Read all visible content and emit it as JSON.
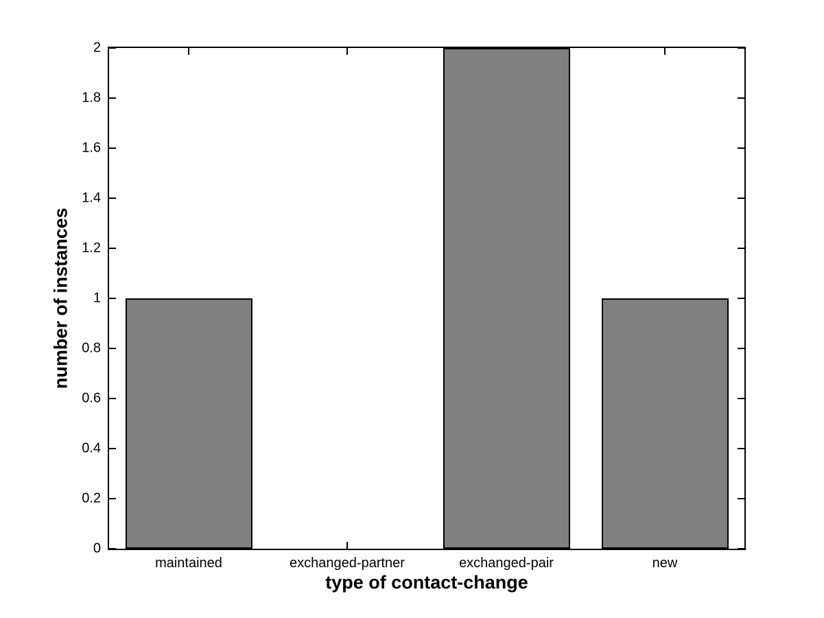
{
  "chart_data": {
    "type": "bar",
    "categories": [
      "maintained",
      "exchanged-partner",
      "exchanged-pair",
      "new"
    ],
    "values": [
      1,
      0,
      2,
      1
    ],
    "title": "",
    "xlabel": "type of contact-change",
    "ylabel": "number of instances",
    "ylim": [
      0,
      2
    ],
    "yticks": [
      0,
      0.2,
      0.4,
      0.6,
      0.8,
      1,
      1.2,
      1.4,
      1.6,
      1.8,
      2
    ],
    "ytick_labels": [
      "0",
      "0.2",
      "0.4",
      "0.6",
      "0.8",
      "1",
      "1.2",
      "1.4",
      "1.6",
      "1.8",
      "2"
    ],
    "grid": false,
    "legend": null,
    "bar_width_fraction": 0.8,
    "bar_color": "#808080",
    "bar_edge_color": "#000000",
    "axis_color": "#000000",
    "background_color": "#ffffff",
    "tick_direction": "in",
    "box": true
  }
}
